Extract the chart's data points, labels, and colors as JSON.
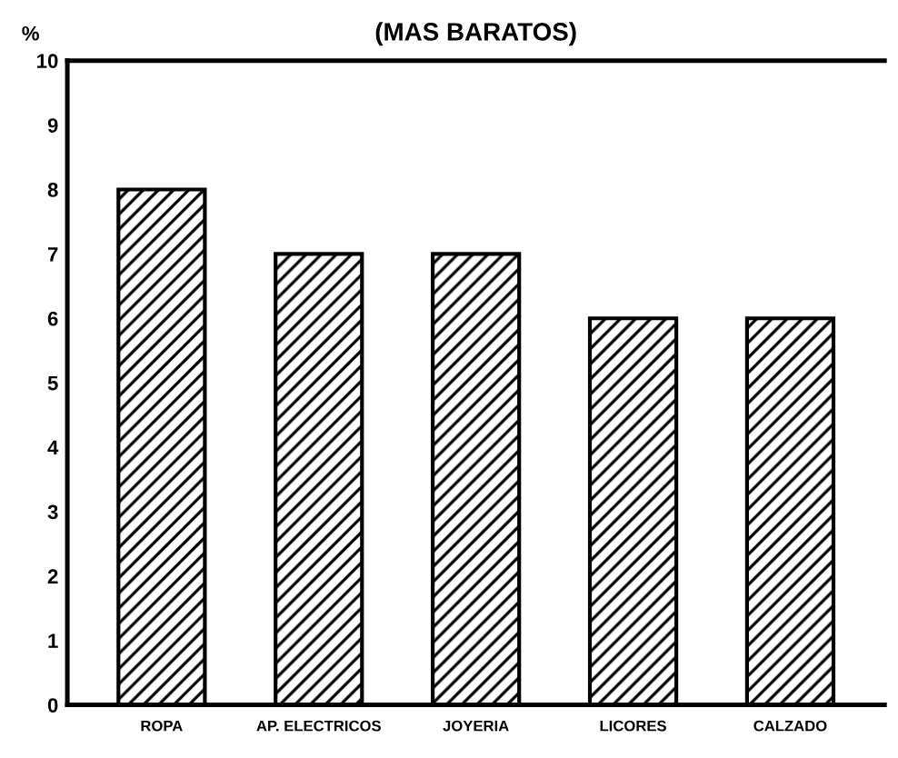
{
  "chart_data": {
    "type": "bar",
    "title": "(MAS BARATOS)",
    "ylabel": "%",
    "categories": [
      "ROPA",
      "AP. ELECTRICOS",
      "JOYERIA",
      "LICORES",
      "CALZADO"
    ],
    "values": [
      8,
      7,
      7,
      6,
      6
    ],
    "color": "#000000",
    "ylim": [
      0,
      10
    ],
    "yticks": [
      0,
      1,
      2,
      3,
      4,
      5,
      6,
      7,
      8,
      9,
      10
    ],
    "grid": false,
    "legend": false
  }
}
